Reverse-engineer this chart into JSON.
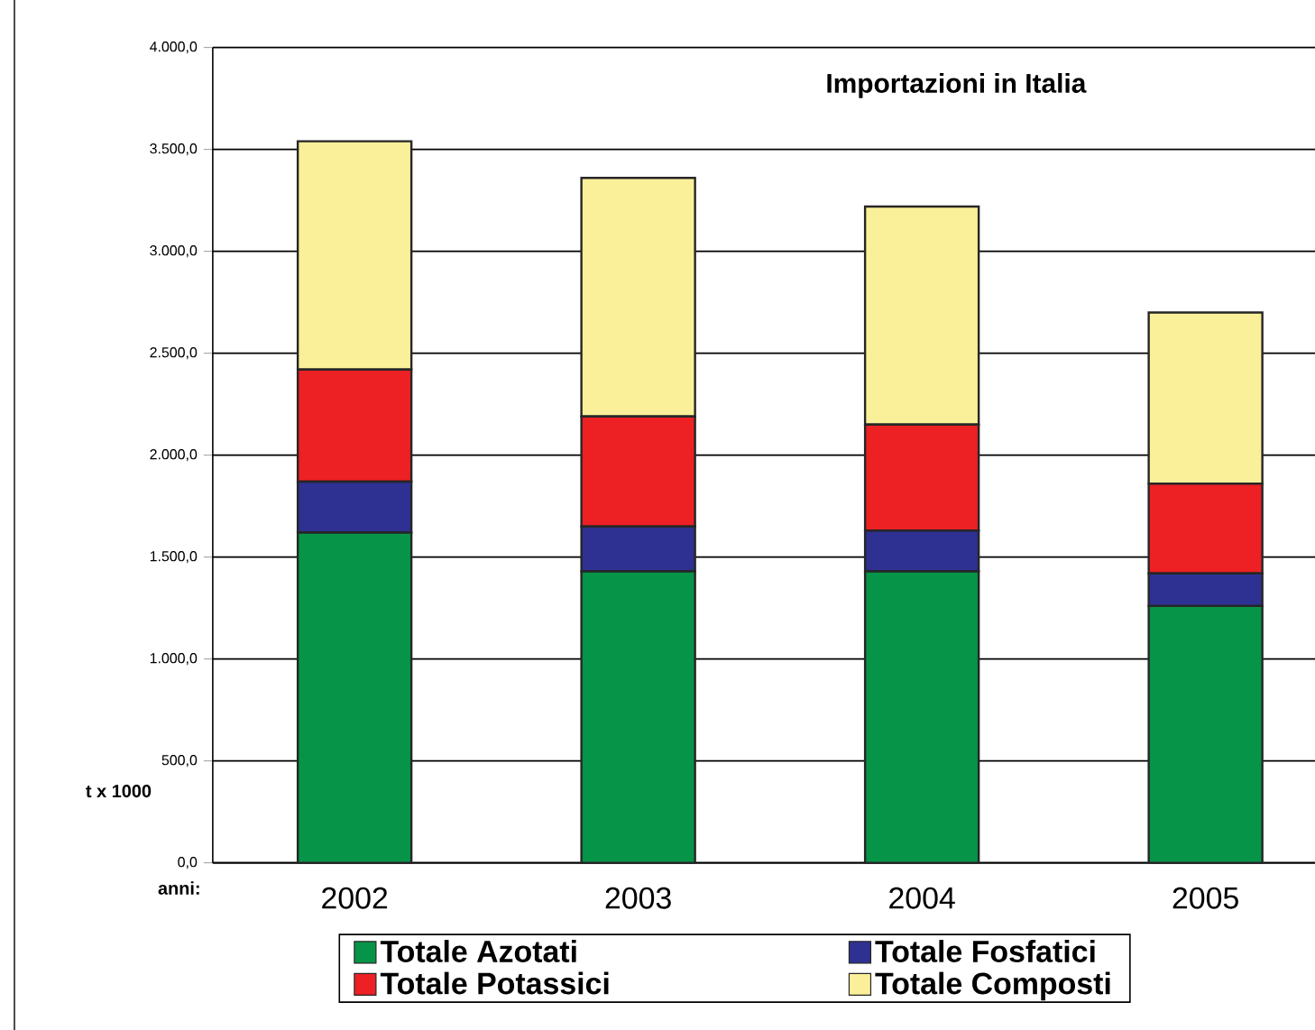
{
  "chart_data": {
    "type": "bar",
    "stacked": true,
    "title": "Importazioni in Italia",
    "ylabel": "t x 1000",
    "annotations": [
      "anni:"
    ],
    "categories": [
      "2002",
      "2003",
      "2004",
      "2005"
    ],
    "series": [
      {
        "name": "Totale Azotati",
        "color": "#069449",
        "values": [
          1620,
          1430,
          1430,
          1260
        ]
      },
      {
        "name": "Totale Fosfatici",
        "color": "#2e3192",
        "values": [
          250,
          220,
          200,
          160
        ]
      },
      {
        "name": "Totale Potassici",
        "color": "#ed2024",
        "values": [
          550,
          540,
          520,
          440
        ]
      },
      {
        "name": "Totale Composti",
        "color": "#faf09a",
        "values": [
          1120,
          1170,
          1070,
          840
        ]
      }
    ],
    "ylim": [
      0,
      4000
    ],
    "yticks": [
      {
        "value": 0,
        "label": "0,0"
      },
      {
        "value": 500,
        "label": "500,0"
      },
      {
        "value": 1000,
        "label": "1.000,0"
      },
      {
        "value": 1500,
        "label": "1.500,0"
      },
      {
        "value": 2000,
        "label": "2.000,0"
      },
      {
        "value": 2500,
        "label": "2.500,0"
      },
      {
        "value": 3000,
        "label": "3.000,0"
      },
      {
        "value": 3500,
        "label": "3.500,0"
      },
      {
        "value": 4000,
        "label": "4.000,0"
      }
    ],
    "grid": "y",
    "legend": "bottom"
  }
}
